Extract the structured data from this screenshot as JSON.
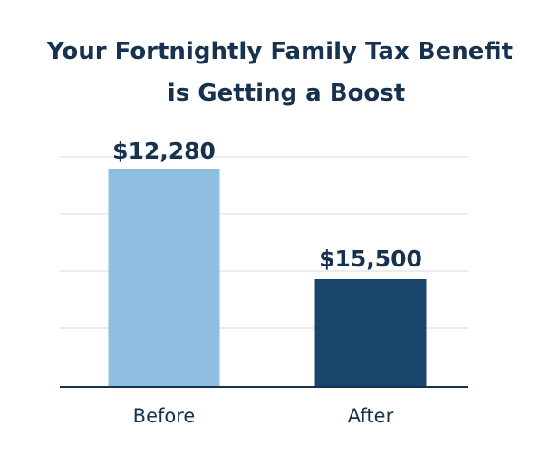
{
  "chart_data": {
    "type": "bar",
    "title_lines": [
      "Your Fortnightly Family Tax Benefit",
      "is Getting a Boost"
    ],
    "categories": [
      "Before",
      "After"
    ],
    "values": [
      12280,
      15500
    ],
    "data_labels": [
      "$12,280",
      "$15,500"
    ],
    "colors": [
      "#8fbfe0",
      "#17456b"
    ],
    "axis_color": "#17324f",
    "grid": true,
    "grid_color": "#d9d9d9",
    "xlabel": "",
    "ylabel": ""
  }
}
